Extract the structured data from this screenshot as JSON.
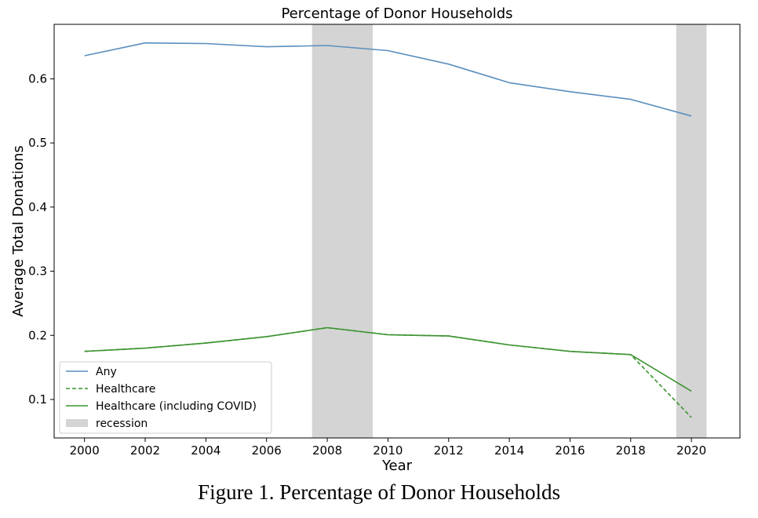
{
  "chart_data": {
    "type": "line",
    "title": "Percentage of Donor Households",
    "xlabel": "Year",
    "ylabel": "Average Total Donations",
    "xlim": [
      1999,
      2021.6
    ],
    "ylim": [
      0.04,
      0.685
    ],
    "xticks": [
      2000,
      2002,
      2004,
      2006,
      2008,
      2010,
      2012,
      2014,
      2016,
      2018,
      2020
    ],
    "yticks": [
      0.1,
      0.2,
      0.3,
      0.4,
      0.5,
      0.6
    ],
    "yticklabels": [
      "0.1",
      "0.2",
      "0.3",
      "0.4",
      "0.5",
      "0.6"
    ],
    "grid": false,
    "legend_position": "lower-left",
    "recessions": [
      {
        "start": 2007.5,
        "end": 2009.5
      },
      {
        "start": 2019.5,
        "end": 2020.5
      }
    ],
    "recession_label": "recession",
    "recession_color": "#d4d4d4",
    "series": [
      {
        "name": "Any",
        "color": "#5b8fbe",
        "style": "solid",
        "x": [
          2000,
          2002,
          2004,
          2006,
          2008,
          2010,
          2012,
          2014,
          2016,
          2018,
          2020
        ],
        "y": [
          0.636,
          0.656,
          0.655,
          0.65,
          0.652,
          0.644,
          0.623,
          0.594,
          0.58,
          0.568,
          0.542
        ]
      },
      {
        "name": "Healthcare",
        "color": "#3c9330",
        "style": "dashed",
        "x": [
          2000,
          2002,
          2004,
          2006,
          2008,
          2010,
          2012,
          2014,
          2016,
          2018,
          2020
        ],
        "y": [
          0.175,
          0.18,
          0.188,
          0.198,
          0.212,
          0.201,
          0.199,
          0.185,
          0.175,
          0.17,
          0.072
        ]
      },
      {
        "name": "Healthcare (including COVID)",
        "color": "#3c9330",
        "style": "solid",
        "x": [
          2000,
          2002,
          2004,
          2006,
          2008,
          2010,
          2012,
          2014,
          2016,
          2018,
          2020
        ],
        "y": [
          0.175,
          0.18,
          0.188,
          0.198,
          0.212,
          0.201,
          0.199,
          0.185,
          0.175,
          0.17,
          0.113
        ]
      }
    ]
  },
  "caption": "Figure 1. Percentage of Donor Households"
}
